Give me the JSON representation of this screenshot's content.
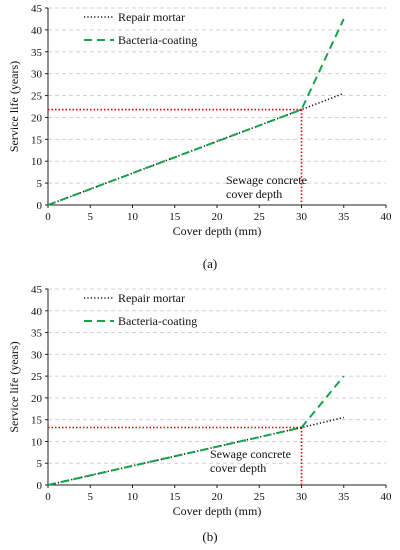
{
  "figure": {
    "panels": [
      {
        "caption_letter": "a",
        "xlabel": "Cover depth (mm)",
        "ylabel": "Service life (years)",
        "annotation": [
          "Sewage concrete",
          "cover depth"
        ]
      },
      {
        "caption_letter": "b",
        "xlabel": "Cover depth (mm)",
        "ylabel": "Service life (years)",
        "annotation": [
          "Sewage concrete",
          "cover depth"
        ]
      }
    ]
  },
  "chart_data": [
    {
      "type": "line",
      "xlabel": "Cover depth (mm)",
      "ylabel": "Service life (years)",
      "xlim": [
        0,
        40
      ],
      "ylim": [
        0,
        45
      ],
      "xticks": [
        0,
        5,
        10,
        15,
        20,
        25,
        30,
        35,
        40
      ],
      "yticks": [
        0,
        5,
        10,
        15,
        20,
        25,
        30,
        35,
        40,
        45
      ],
      "grid": "horizontal dashed",
      "legend_position": "top-left",
      "series": [
        {
          "name": "Repair mortar",
          "style": "dotted",
          "color": "#111111",
          "x": [
            0,
            30,
            35
          ],
          "y": [
            0,
            21.8,
            25.5
          ]
        },
        {
          "name": "Bacteria-coating",
          "style": "dashed",
          "color": "#16a34a",
          "x": [
            0,
            30,
            35
          ],
          "y": [
            0,
            21.8,
            42.5
          ]
        }
      ],
      "reference": {
        "color": "#e00000",
        "x": 30,
        "y": 21.8
      },
      "annotation": [
        "Sewage concrete",
        "cover depth"
      ],
      "caption": "(a)"
    },
    {
      "type": "line",
      "xlabel": "Cover depth (mm)",
      "ylabel": "Service life (years)",
      "xlim": [
        0,
        40
      ],
      "ylim": [
        0,
        45
      ],
      "xticks": [
        0,
        5,
        10,
        15,
        20,
        25,
        30,
        35,
        40
      ],
      "yticks": [
        0,
        5,
        10,
        15,
        20,
        25,
        30,
        35,
        40,
        45
      ],
      "grid": "horizontal dashed",
      "legend_position": "top-left",
      "series": [
        {
          "name": "Repair mortar",
          "style": "dotted",
          "color": "#111111",
          "x": [
            0,
            30,
            35
          ],
          "y": [
            0,
            13.2,
            15.5
          ]
        },
        {
          "name": "Bacteria-coating",
          "style": "dashed",
          "color": "#16a34a",
          "x": [
            0,
            30,
            35
          ],
          "y": [
            0,
            13.2,
            25
          ]
        }
      ],
      "reference": {
        "color": "#e00000",
        "x": 30,
        "y": 13.2
      },
      "annotation": [
        "Sewage concrete",
        "cover depth"
      ],
      "caption": "(b)"
    }
  ]
}
